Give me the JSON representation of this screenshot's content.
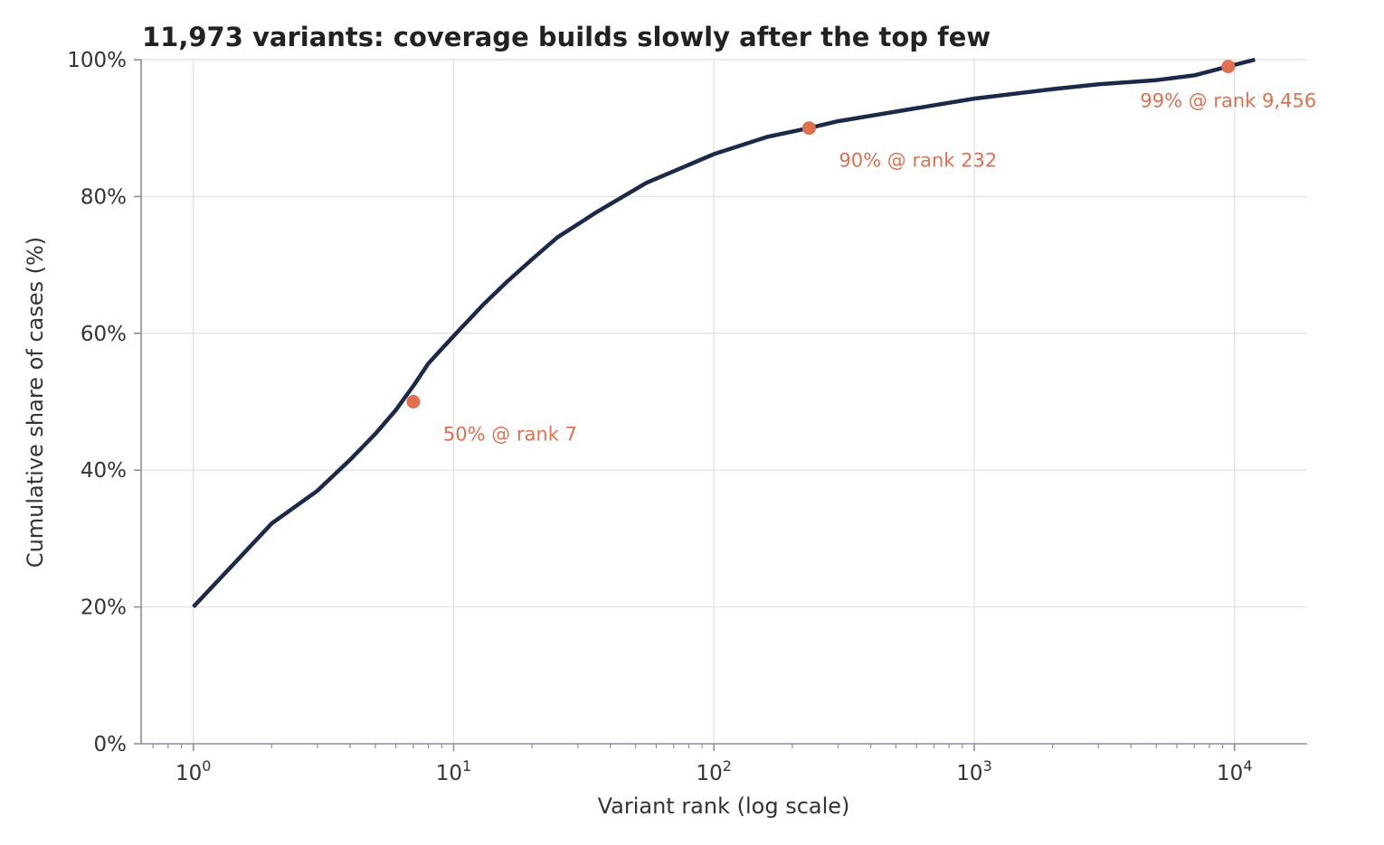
{
  "colors": {
    "line": "#1c2a4a",
    "marker": "#e07050",
    "grid": "#e3e3e3",
    "text": "#333333"
  },
  "chart_data": {
    "type": "line",
    "title": "11,973 variants: coverage builds slowly after the top few",
    "xlabel": "Variant rank (log scale)",
    "ylabel": "Cumulative share of cases (%)",
    "x_scale": "log",
    "xlim": [
      0.63,
      19000
    ],
    "ylim": [
      0,
      100
    ],
    "grid": true,
    "xticks": [
      {
        "value": 1,
        "base": "10",
        "exp": "0"
      },
      {
        "value": 10,
        "base": "10",
        "exp": "1"
      },
      {
        "value": 100,
        "base": "10",
        "exp": "2"
      },
      {
        "value": 1000,
        "base": "10",
        "exp": "3"
      },
      {
        "value": 10000,
        "base": "10",
        "exp": "4"
      }
    ],
    "yticks": [
      {
        "value": 0,
        "label": "0%"
      },
      {
        "value": 20,
        "label": "20%"
      },
      {
        "value": 40,
        "label": "40%"
      },
      {
        "value": 60,
        "label": "60%"
      },
      {
        "value": 80,
        "label": "80%"
      },
      {
        "value": 100,
        "label": "100%"
      }
    ],
    "series": [
      {
        "x": [
          1,
          2,
          3,
          4,
          5,
          6,
          7,
          8,
          10,
          13,
          16,
          20,
          25,
          35,
          55,
          100,
          160,
          232,
          300,
          500,
          1000,
          2000,
          3000,
          5000,
          7000,
          9456,
          11973
        ],
        "y": [
          20,
          32.2,
          37,
          41.5,
          45.3,
          48.8,
          52.3,
          55.6,
          59.6,
          64.2,
          67.5,
          70.8,
          74,
          77.6,
          82,
          86.2,
          88.7,
          90,
          91,
          92.4,
          94.3,
          95.7,
          96.4,
          97,
          97.7,
          99,
          100
        ]
      }
    ],
    "markers": [
      {
        "x": 7,
        "y": 50,
        "label": "50% @ rank 7"
      },
      {
        "x": 232,
        "y": 90,
        "label": "90% @ rank 232"
      },
      {
        "x": 9456,
        "y": 99,
        "label": "99% @ rank 9,456"
      }
    ]
  }
}
